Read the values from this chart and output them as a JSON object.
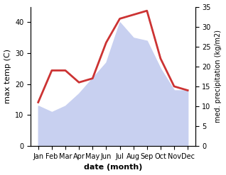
{
  "months": [
    "Jan",
    "Feb",
    "Mar",
    "Apr",
    "May",
    "Jun",
    "Jul",
    "Aug",
    "Sep",
    "Oct",
    "Nov",
    "Dec"
  ],
  "max_temp": [
    13,
    11,
    13,
    17,
    22,
    27,
    40,
    35,
    34,
    25,
    18,
    18
  ],
  "precipitation": [
    11,
    19,
    19,
    16,
    17,
    26,
    32,
    33,
    34,
    22,
    15,
    14
  ],
  "temp_ylim": [
    0,
    45
  ],
  "precip_ylim": [
    0,
    35
  ],
  "temp_yticks": [
    0,
    10,
    20,
    30,
    40
  ],
  "precip_yticks": [
    0,
    5,
    10,
    15,
    20,
    25,
    30,
    35
  ],
  "xlabel": "date (month)",
  "ylabel_left": "max temp (C)",
  "ylabel_right": "med. precipitation (kg/m2)",
  "fill_color": "#c8d0f0",
  "line_color": "#cc3333",
  "line_width": 2.0,
  "fig_width": 3.18,
  "fig_height": 2.47,
  "dpi": 100
}
